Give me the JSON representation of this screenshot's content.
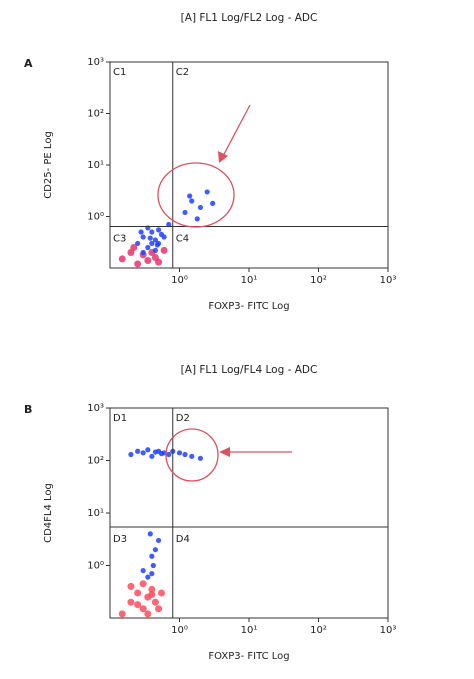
{
  "chart_data": [
    {
      "type": "scatter",
      "panel": "A",
      "title": "[A] FL1 Log/FL2 Log - ADC",
      "xlabel": "FOXP3- FITC Log",
      "ylabel": "CD25- PE Log",
      "log": true,
      "xlim": [
        0.1,
        1000
      ],
      "ylim": [
        0.1,
        1000
      ],
      "xticks": [
        {
          "value": 1,
          "label": "10⁰"
        },
        {
          "value": 10,
          "label": "10¹"
        },
        {
          "value": 100,
          "label": "10²"
        },
        {
          "value": 1000,
          "label": "10³"
        }
      ],
      "yticks": [
        {
          "value": 1,
          "label": "10⁰"
        },
        {
          "value": 10,
          "label": "10¹"
        },
        {
          "value": 100,
          "label": "10²"
        },
        {
          "value": 1000,
          "label": "10³"
        }
      ],
      "gates": {
        "x": 0.8,
        "y": 0.64
      },
      "quadrant_labels": [
        "C1",
        "C2",
        "C3",
        "C4"
      ],
      "series": [
        {
          "color": "#e8326e",
          "x": [
            0.15,
            0.2,
            0.25,
            0.3,
            0.35,
            0.4,
            0.5,
            0.22,
            0.45,
            0.6
          ],
          "values": [
            0.15,
            0.2,
            0.12,
            0.18,
            0.14,
            0.2,
            0.13,
            0.25,
            0.16,
            0.22
          ]
        },
        {
          "color": "#1f3fff",
          "x": [
            0.25,
            0.3,
            0.35,
            0.4,
            0.45,
            0.5,
            0.55,
            0.3,
            0.35,
            0.4,
            0.45,
            0.5,
            0.28,
            0.38,
            0.48,
            0.6,
            0.7,
            1.2,
            1.5,
            2,
            2.5,
            1.8,
            3,
            1.4
          ],
          "values": [
            0.3,
            0.4,
            0.25,
            0.5,
            0.35,
            0.3,
            0.45,
            0.2,
            0.6,
            0.3,
            0.22,
            0.55,
            0.5,
            0.38,
            0.28,
            0.4,
            0.7,
            1.2,
            2,
            1.5,
            3,
            0.9,
            1.8,
            2.5
          ]
        }
      ]
    },
    {
      "type": "scatter",
      "panel": "B",
      "title": "[A] FL1 Log/FL4 Log - ADC",
      "xlabel": "FOXP3- FITC Log",
      "ylabel": "CD4FL4 Log",
      "log": true,
      "xlim": [
        0.1,
        1000
      ],
      "ylim": [
        0.1,
        1000
      ],
      "xticks": [
        {
          "value": 1,
          "label": "10⁰"
        },
        {
          "value": 10,
          "label": "10¹"
        },
        {
          "value": 100,
          "label": "10²"
        },
        {
          "value": 1000,
          "label": "10³"
        }
      ],
      "yticks": [
        {
          "value": 1,
          "label": "10⁰"
        },
        {
          "value": 10,
          "label": "10¹"
        },
        {
          "value": 100,
          "label": "10²"
        },
        {
          "value": 1000,
          "label": "10³"
        }
      ],
      "gates": {
        "x": 0.8,
        "y": 5.4
      },
      "quadrant_labels": [
        "D1",
        "D2",
        "D3",
        "D4"
      ],
      "series": [
        {
          "color": "#ff4a5a",
          "x": [
            0.15,
            0.2,
            0.25,
            0.3,
            0.35,
            0.4,
            0.45,
            0.5,
            0.3,
            0.35,
            0.4,
            0.2,
            0.25,
            0.55
          ],
          "values": [
            0.12,
            0.2,
            0.3,
            0.15,
            0.25,
            0.35,
            0.2,
            0.15,
            0.45,
            0.12,
            0.28,
            0.4,
            0.18,
            0.3
          ]
        },
        {
          "color": "#1f3fff",
          "x": [
            0.2,
            0.25,
            0.3,
            0.35,
            0.4,
            0.45,
            0.5,
            0.55,
            0.6,
            0.7,
            0.8,
            1,
            1.2,
            1.5,
            2,
            0.3,
            0.4,
            0.5,
            0.35,
            0.45,
            0.38,
            0.42,
            0.4
          ],
          "values": [
            130,
            150,
            140,
            160,
            120,
            145,
            150,
            135,
            140,
            130,
            150,
            140,
            130,
            120,
            110,
            0.8,
            1.5,
            3,
            0.6,
            2,
            4,
            1,
            0.7
          ]
        }
      ]
    }
  ]
}
